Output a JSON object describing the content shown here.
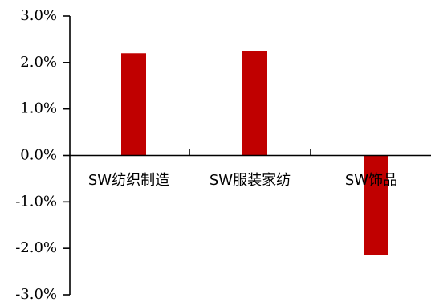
{
  "chart_data": {
    "type": "bar",
    "title": "",
    "xlabel": "",
    "ylabel": "",
    "categories": [
      "SW纺织制造",
      "SW服装家纺",
      "SW饰品"
    ],
    "values": [
      2.2,
      2.25,
      -2.15
    ],
    "value_unit": "%",
    "ylim": [
      -3.0,
      3.0
    ],
    "yticks": [
      3.0,
      2.0,
      1.0,
      0.0,
      -1.0,
      -2.0,
      -3.0
    ],
    "ytick_labels": [
      "3.0%",
      "2.0%",
      "1.0%",
      "0.0%",
      "-1.0%",
      "-2.0%",
      "-3.0%"
    ],
    "grid": false,
    "legend": "none",
    "bar_color": "#C00000"
  }
}
